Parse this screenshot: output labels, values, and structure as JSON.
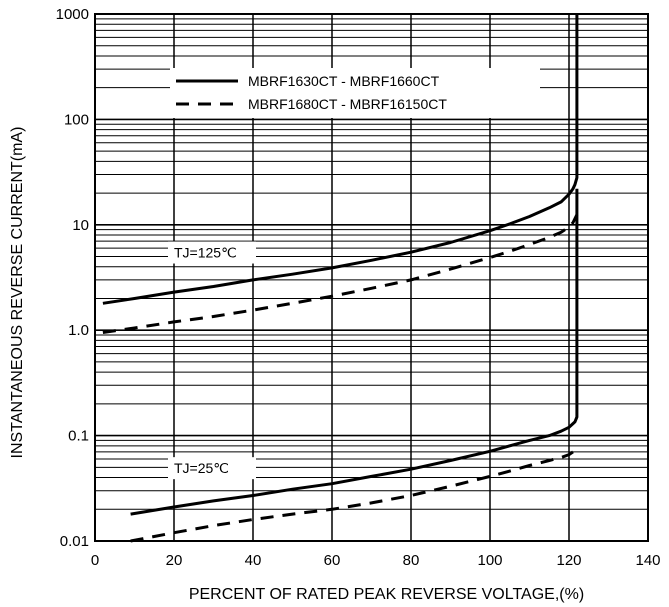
{
  "chart_data": {
    "type": "line",
    "title": "",
    "xlabel": "PERCENT OF RATED PEAK REVERSE VOLTAGE,(%)",
    "ylabel": "INSTANTANEOUS REVERSE CURRENT(mA)",
    "xlim": [
      0,
      140
    ],
    "ylim": [
      0.01,
      1000
    ],
    "yscale": "log",
    "grid": true,
    "legend_position": "top-center",
    "x_ticks": [
      0,
      20,
      40,
      60,
      80,
      100,
      120,
      140
    ],
    "x_tick_labels": [
      "0",
      "20",
      "40",
      "60",
      "80",
      "100",
      "120",
      "140"
    ],
    "y_ticks": [
      0.01,
      0.1,
      1,
      10,
      100,
      1000
    ],
    "y_tick_labels": [
      "0.01",
      "0.1",
      "1.0",
      "10",
      "100",
      "1000"
    ],
    "legend": [
      {
        "label": "MBRF1630CT - MBRF1660CT",
        "style": "solid"
      },
      {
        "label": "MBRF1680CT - MBRF16150CT",
        "style": "dashed"
      }
    ],
    "annotations": [
      {
        "text": "TJ=125℃",
        "x": 20,
        "y": 5
      },
      {
        "text": "TJ=25℃",
        "x": 20,
        "y": 0.045
      }
    ],
    "series": [
      {
        "name": "MBRF1630CT - MBRF1660CT",
        "group": "TJ=125℃",
        "style": "solid",
        "x": [
          2,
          10,
          20,
          30,
          40,
          50,
          60,
          70,
          80,
          90,
          100,
          105,
          110,
          115,
          118,
          120,
          121,
          121.5,
          122,
          122,
          122
        ],
        "y": [
          1.8,
          2.0,
          2.3,
          2.6,
          3.0,
          3.4,
          3.9,
          4.6,
          5.5,
          6.8,
          8.8,
          10.2,
          12.0,
          14.5,
          16.5,
          19.5,
          22,
          24,
          28,
          60,
          1000
        ]
      },
      {
        "name": "MBRF1680CT - MBRF16150CT",
        "group": "TJ=125℃",
        "style": "dashed",
        "x": [
          2,
          10,
          20,
          30,
          40,
          50,
          60,
          70,
          80,
          90,
          100,
          105,
          110,
          115,
          118,
          120,
          121,
          122
        ],
        "y": [
          0.95,
          1.05,
          1.2,
          1.35,
          1.55,
          1.8,
          2.1,
          2.5,
          3.0,
          3.8,
          4.9,
          5.6,
          6.5,
          7.6,
          8.5,
          9.5,
          10.5,
          12.5
        ]
      },
      {
        "name": "MBRF1630CT - MBRF1660CT",
        "group": "TJ=25℃",
        "style": "solid",
        "x": [
          9,
          20,
          30,
          40,
          50,
          60,
          70,
          80,
          90,
          100,
          105,
          110,
          115,
          118,
          120,
          121,
          121.5,
          122,
          122
        ],
        "y": [
          0.018,
          0.021,
          0.024,
          0.027,
          0.031,
          0.035,
          0.041,
          0.048,
          0.058,
          0.071,
          0.08,
          0.09,
          0.1,
          0.11,
          0.12,
          0.13,
          0.135,
          0.15,
          22
        ]
      },
      {
        "name": "MBRF1680CT - MBRF16150CT",
        "group": "TJ=25℃",
        "style": "dashed",
        "x": [
          9,
          20,
          30,
          40,
          50,
          60,
          70,
          80,
          90,
          100,
          105,
          110,
          115,
          118,
          120,
          121
        ],
        "y": [
          0.01,
          0.012,
          0.014,
          0.016,
          0.018,
          0.02,
          0.023,
          0.027,
          0.033,
          0.041,
          0.046,
          0.052,
          0.058,
          0.062,
          0.066,
          0.07
        ]
      }
    ]
  }
}
